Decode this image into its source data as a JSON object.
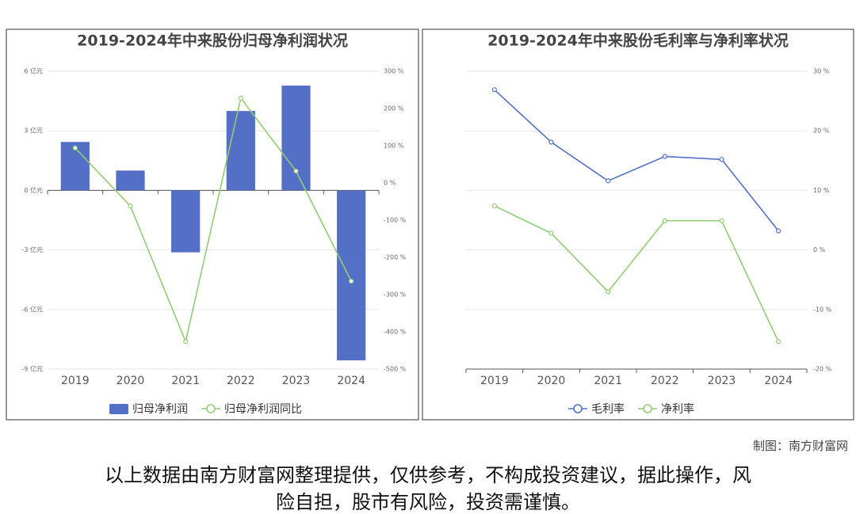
{
  "charts": [
    {
      "type": "bar",
      "title": "2019-2024年中来股份归母净利润状况",
      "categories": [
        "2019",
        "2020",
        "2021",
        "2022",
        "2023",
        "2024"
      ],
      "series": [
        {
          "name": "归母净利润",
          "type": "bar",
          "color": "#5470c6",
          "values": [
            2.44,
            1.0,
            -3.12,
            4.0,
            5.28,
            -8.56
          ]
        },
        {
          "name": "归母净利润同比",
          "type": "line",
          "axis": "y2",
          "color": "#91cc75",
          "values": [
            94,
            -62,
            -426,
            228,
            32,
            -264
          ]
        }
      ],
      "ylim": [
        -9,
        6
      ],
      "yticks": [
        {
          "value": -9,
          "label": "-9 亿元"
        },
        {
          "value": -6,
          "label": "-6 亿元"
        },
        {
          "value": -3,
          "label": "-3 亿元"
        },
        {
          "value": 0,
          "label": "0 亿元"
        },
        {
          "value": 3,
          "label": "3 亿元"
        },
        {
          "value": 6,
          "label": "6 亿元"
        }
      ],
      "y2lim": [
        -500,
        300
      ],
      "y2ticks": [
        {
          "value": -500,
          "label": "-500 %"
        },
        {
          "value": -400,
          "label": "-400 %"
        },
        {
          "value": -300,
          "label": "-300 %"
        },
        {
          "value": -200,
          "label": "-200 %"
        },
        {
          "value": -100,
          "label": "-100 %"
        },
        {
          "value": 0,
          "label": "0 %"
        },
        {
          "value": 100,
          "label": "100 %"
        },
        {
          "value": 200,
          "label": "200 %"
        },
        {
          "value": 300,
          "label": "300 %"
        }
      ],
      "grid": true
    },
    {
      "type": "line",
      "title": "2019-2024年中来股份毛利率与净利率状况",
      "categories": [
        "2019",
        "2020",
        "2021",
        "2022",
        "2023",
        "2024"
      ],
      "series": [
        {
          "name": "毛利率",
          "type": "line",
          "color": "#5470c6",
          "values": [
            26.9,
            18.1,
            11.6,
            15.7,
            15.2,
            3.2
          ]
        },
        {
          "name": "净利率",
          "type": "line",
          "color": "#91cc75",
          "values": [
            7.4,
            2.8,
            -7.0,
            4.9,
            4.9,
            -15.4
          ]
        }
      ],
      "ylim": [
        -20,
        30
      ],
      "yticks": [
        {
          "value": -20,
          "label": "-20 %"
        },
        {
          "value": -10,
          "label": "-10 %"
        },
        {
          "value": 0,
          "label": "0 %"
        },
        {
          "value": 10,
          "label": "10 %"
        },
        {
          "value": 20,
          "label": "20 %"
        },
        {
          "value": 30,
          "label": "30 %"
        }
      ],
      "yaxis_side": "right",
      "grid": true
    }
  ],
  "credit": "制图：南方财富网",
  "disclaimer": [
    "以上数据由南方财富网整理提供，仅供参考，不构成投资建议，据此操作，风",
    "险自担，股市有风险，投资需谨慎。"
  ]
}
